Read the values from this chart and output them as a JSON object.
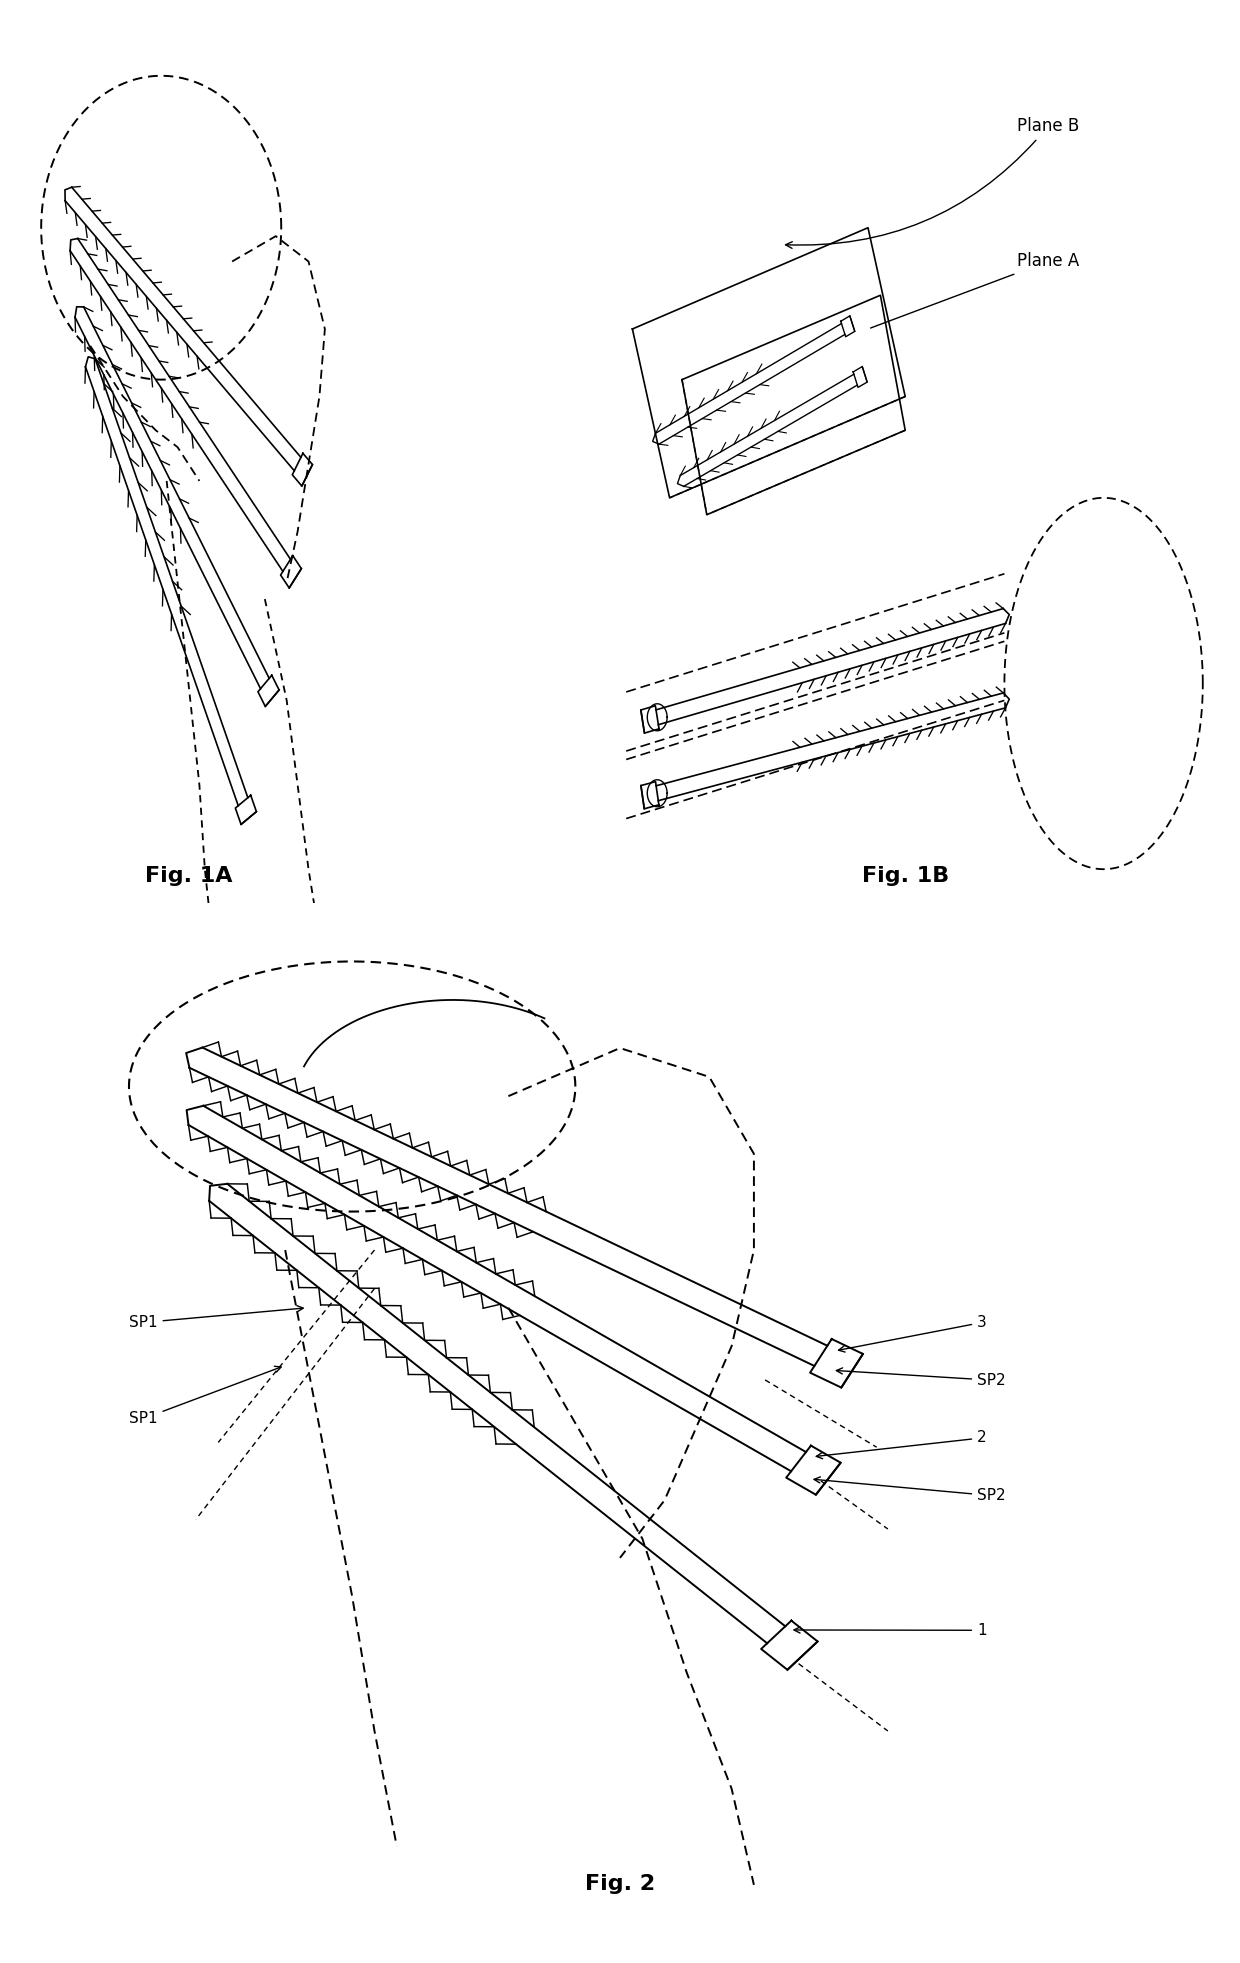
{
  "fig_width": 12.4,
  "fig_height": 19.63,
  "bg_color": "#ffffff",
  "fig1a_label": "Fig. 1A",
  "fig1b_label": "Fig. 1B",
  "fig2_label": "Fig. 2",
  "label_fontsize": 16,
  "annotation_fontsize": 12,
  "plane_b_label": "Plane B",
  "plane_a_label": "Plane A",
  "sp1_label": "SP1",
  "sp2_label": "SP2"
}
